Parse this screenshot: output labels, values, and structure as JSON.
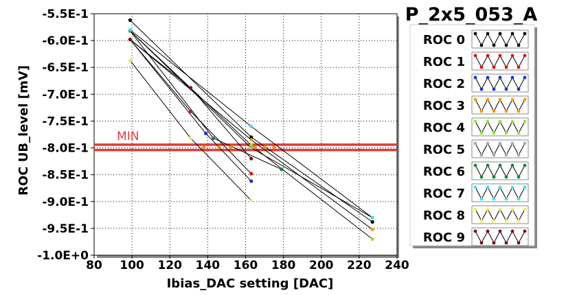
{
  "chart_data": {
    "type": "line",
    "title": "P_2x5_053_A",
    "xlabel": "Ibias_DAC setting [DAC]",
    "ylabel": "ROC UB_level [mV]",
    "xlim": [
      80,
      240
    ],
    "ylim": [
      -1.0,
      -0.55
    ],
    "x_ticks": [
      80,
      100,
      120,
      140,
      160,
      180,
      200,
      220,
      240
    ],
    "x_tick_labels": [
      "80",
      "100",
      "120",
      "140",
      "160",
      "180",
      "200",
      "220",
      "240"
    ],
    "y_ticks": [
      -0.55,
      -0.6,
      -0.65,
      -0.7,
      -0.75,
      -0.8,
      -0.85,
      -0.9,
      -0.95,
      -1.0
    ],
    "y_tick_labels": [
      "-5.5E-1",
      "-6.0E-1",
      "-6.5E-1",
      "-7.0E-1",
      "-7.5E-1",
      "-8.0E-1",
      "-8.5E-1",
      "-9.0E-1",
      "-9.5E-1",
      "-1.0E+0"
    ],
    "grid": true,
    "legend_position": "right",
    "reference_lines": [
      {
        "label": "MIN",
        "y": -0.794,
        "color": "#e53935"
      },
      {
        "label": "",
        "y": -0.804,
        "color": "#e53935"
      }
    ],
    "marker_band_color": "#ff8c00",
    "series": [
      {
        "name": "ROC 0",
        "color": "#000000",
        "x": [
          99,
          163,
          227
        ],
        "y": [
          -0.562,
          -0.78,
          -0.938
        ]
      },
      {
        "name": "ROC 1",
        "color": "#dd1111",
        "x": [
          99,
          131,
          163
        ],
        "y": [
          -0.598,
          -0.732,
          -0.848
        ]
      },
      {
        "name": "ROC 2",
        "color": "#1133cc",
        "x": [
          99,
          139,
          163
        ],
        "y": [
          -0.598,
          -0.773,
          -0.862
        ]
      },
      {
        "name": "ROC 3",
        "color": "#ff9900",
        "x": [
          99,
          163,
          227
        ],
        "y": [
          -0.598,
          -0.785,
          -0.952
        ]
      },
      {
        "name": "ROC 4",
        "color": "#88ee22",
        "x": [
          99,
          163,
          227
        ],
        "y": [
          -0.582,
          -0.795,
          -0.97
        ]
      },
      {
        "name": "ROC 5",
        "color": "#aaaaaa",
        "x": [
          99,
          163,
          227
        ],
        "y": [
          -0.582,
          -0.8,
          -0.93
        ]
      },
      {
        "name": "ROC 6",
        "color": "#118833",
        "x": [
          99,
          143,
          179
        ],
        "y": [
          -0.582,
          -0.782,
          -0.84
        ]
      },
      {
        "name": "ROC 7",
        "color": "#44ddee",
        "x": [
          99,
          163,
          227
        ],
        "y": [
          -0.58,
          -0.76,
          -0.93
        ]
      },
      {
        "name": "ROC 8",
        "color": "#eeee55",
        "x": [
          99,
          131,
          163
        ],
        "y": [
          -0.637,
          -0.782,
          -0.898
        ]
      },
      {
        "name": "ROC 9",
        "color": "#880011",
        "x": [
          99,
          131,
          163
        ],
        "y": [
          -0.598,
          -0.688,
          -0.82
        ]
      }
    ]
  }
}
